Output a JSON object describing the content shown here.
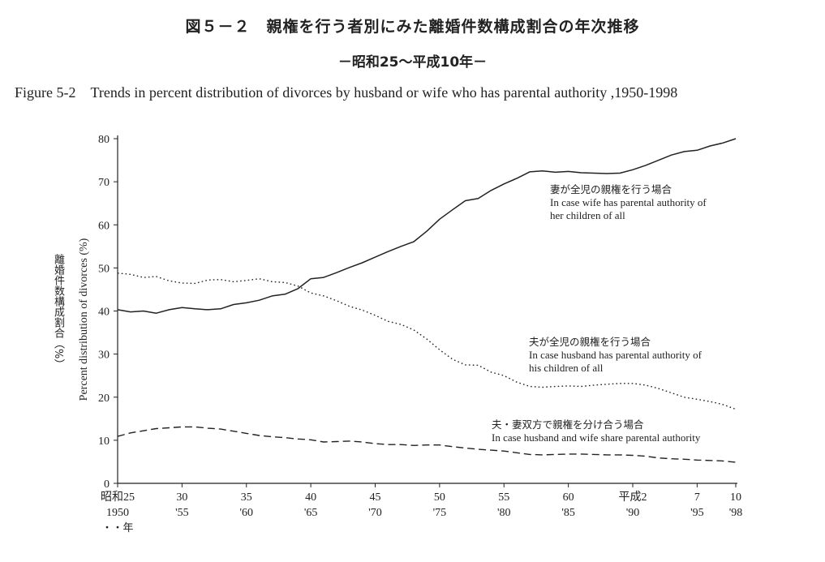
{
  "titles": {
    "jp_main": "図５－２　親権を行う者別にみた離婚件数構成割合の年次推移",
    "jp_sub": "－昭和25～平成10年－",
    "en": "Figure 5-2　Trends in percent distribution of divorces by husband or wife who has parental authority ,1950-1998"
  },
  "chart_data": {
    "type": "line",
    "ylabel_jp": "離婚件数構成割合（%）",
    "ylabel_en": "Percent distribution of divorces (%)",
    "ylim": [
      0,
      80
    ],
    "yticks": [
      "0",
      "10",
      "20",
      "30",
      "40",
      "50",
      "60",
      "70",
      "80"
    ],
    "x_range": [
      1950,
      1998
    ],
    "x_ticks": [
      {
        "year": 1950,
        "jp": "昭和25",
        "en": "1950",
        "extra": "・・年"
      },
      {
        "year": 1955,
        "jp": "30",
        "en": "'55"
      },
      {
        "year": 1960,
        "jp": "35",
        "en": "'60"
      },
      {
        "year": 1965,
        "jp": "40",
        "en": "'65"
      },
      {
        "year": 1970,
        "jp": "45",
        "en": "'70"
      },
      {
        "year": 1975,
        "jp": "50",
        "en": "'75"
      },
      {
        "year": 1980,
        "jp": "55",
        "en": "'80"
      },
      {
        "year": 1985,
        "jp": "60",
        "en": "'85"
      },
      {
        "year": 1990,
        "jp": "平成2",
        "en": "'90"
      },
      {
        "year": 1995,
        "jp": "7",
        "en": "'95"
      },
      {
        "year": 1998,
        "jp": "10",
        "en": "'98"
      }
    ],
    "x": [
      1950,
      1951,
      1952,
      1953,
      1954,
      1955,
      1956,
      1957,
      1958,
      1959,
      1960,
      1961,
      1962,
      1963,
      1964,
      1965,
      1966,
      1967,
      1968,
      1969,
      1970,
      1971,
      1972,
      1973,
      1974,
      1975,
      1976,
      1977,
      1978,
      1979,
      1980,
      1981,
      1982,
      1983,
      1984,
      1985,
      1986,
      1987,
      1988,
      1989,
      1990,
      1991,
      1992,
      1993,
      1994,
      1995,
      1996,
      1997,
      1998
    ],
    "series": [
      {
        "name_jp": "妻が全児の親権を行う場合",
        "name_en": [
          "In case wife has parental authority of",
          "her children of all"
        ],
        "style": "solid",
        "values": [
          40.3,
          39.8,
          40.0,
          39.5,
          40.3,
          40.8,
          40.5,
          40.3,
          40.5,
          41.5,
          41.9,
          42.5,
          43.5,
          43.9,
          45.2,
          47.5,
          47.8,
          48.9,
          50.1,
          51.2,
          52.5,
          53.8,
          55.0,
          56.1,
          58.5,
          61.3,
          63.5,
          65.6,
          66.1,
          68.0,
          69.5,
          70.8,
          72.3,
          72.5,
          72.2,
          72.4,
          72.1,
          72.0,
          71.9,
          72.0,
          72.8,
          73.8,
          75.0,
          76.2,
          77.0,
          77.3,
          78.3,
          79.0,
          80.0
        ]
      },
      {
        "name_jp": "夫が全児の親権を行う場合",
        "name_en": [
          "In case husband has parental authority of",
          "his children of all"
        ],
        "style": "dotted",
        "values": [
          48.8,
          48.5,
          47.8,
          48.0,
          47.0,
          46.5,
          46.4,
          47.2,
          47.3,
          46.8,
          47.1,
          47.5,
          46.8,
          46.6,
          45.8,
          44.2,
          43.5,
          42.4,
          41.1,
          40.2,
          39.0,
          37.6,
          36.9,
          35.6,
          33.5,
          31.0,
          28.8,
          27.5,
          27.4,
          25.8,
          25.0,
          23.5,
          22.5,
          22.3,
          22.5,
          22.6,
          22.5,
          22.8,
          23.0,
          23.2,
          23.2,
          22.8,
          22.0,
          21.0,
          20.0,
          19.5,
          19.0,
          18.3,
          17.2
        ]
      },
      {
        "name_jp": "夫・妻双方で親権を分け合う場合",
        "name_en": [
          "In case husband and wife share parental authority"
        ],
        "style": "dashed",
        "values": [
          10.9,
          11.7,
          12.2,
          12.7,
          12.9,
          13.1,
          13.1,
          12.8,
          12.6,
          12.1,
          11.6,
          11.1,
          10.8,
          10.6,
          10.3,
          10.1,
          9.6,
          9.7,
          9.8,
          9.6,
          9.2,
          9.0,
          9.0,
          8.8,
          8.9,
          8.9,
          8.5,
          8.2,
          7.9,
          7.7,
          7.5,
          7.1,
          6.7,
          6.6,
          6.7,
          6.8,
          6.8,
          6.7,
          6.6,
          6.6,
          6.5,
          6.3,
          5.9,
          5.7,
          5.6,
          5.4,
          5.3,
          5.2,
          4.9
        ]
      }
    ],
    "colors": {
      "line": "#222222",
      "axis": "#222222",
      "background": "#ffffff"
    }
  }
}
